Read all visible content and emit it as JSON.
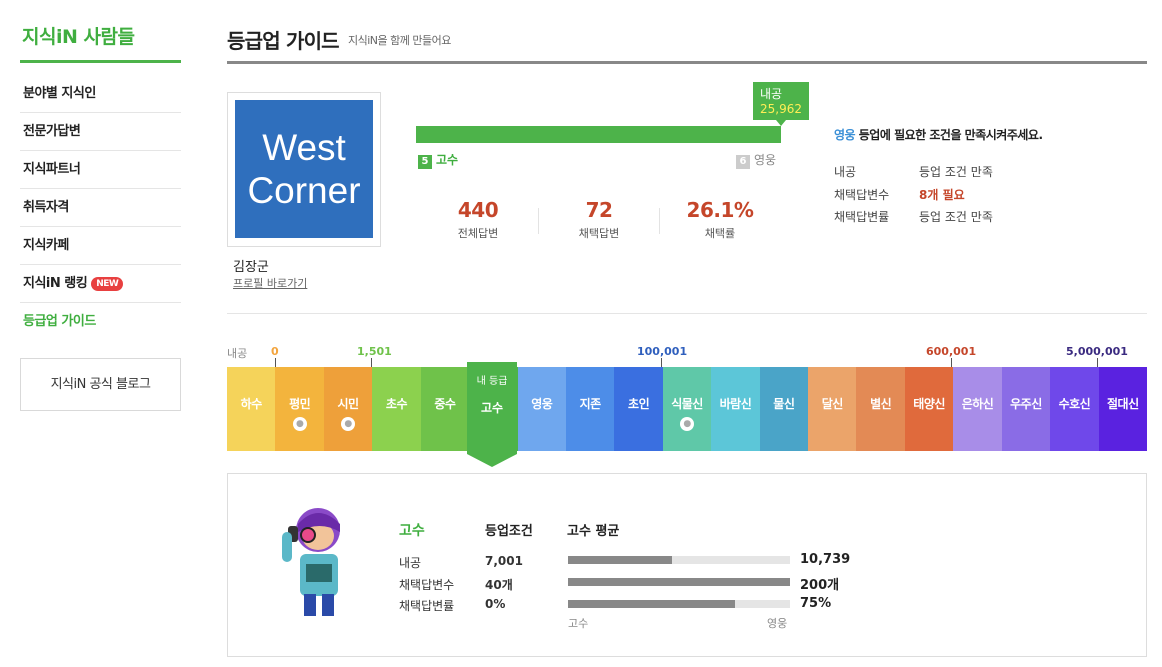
{
  "sidebar": {
    "title": "지식iN 사람들",
    "items": [
      {
        "label": "분야별 지식인"
      },
      {
        "label": "전문가답변"
      },
      {
        "label": "지식파트너"
      },
      {
        "label": "취득자격"
      },
      {
        "label": "지식카페"
      },
      {
        "label": "지식iN 랭킹",
        "badge": "NEW"
      },
      {
        "label": "등급업 가이드"
      }
    ],
    "blog_button": "지식iN 공식 블로그"
  },
  "header": {
    "title": "등급업 가이드",
    "subtitle": "지식iN을 함께 만들어요"
  },
  "profile": {
    "logo_line1": "West",
    "logo_line2": "Corner",
    "name": "김장군",
    "profile_link": "프로필 바로가기"
  },
  "progress": {
    "tip_label": "내공",
    "tip_value": "25,962",
    "fraction": 1.0,
    "current_num": "5",
    "current_name": "고수",
    "next_num": "6",
    "next_name": "영웅"
  },
  "stats": [
    {
      "value": "440",
      "label": "전체답변"
    },
    {
      "value": "72",
      "label": "채택답변"
    },
    {
      "value": "26.1%",
      "label": "채택률"
    }
  ],
  "conditions": {
    "level": "영웅",
    "title_rest": " 등업에 필요한 조건을 만족시켜주세요.",
    "rows": [
      {
        "key": "내공",
        "value": "등업 조건 만족",
        "needed": false
      },
      {
        "key": "채택답변수",
        "value": "8개 필요",
        "needed": true
      },
      {
        "key": "채택답변률",
        "value": "등업 조건 만족",
        "needed": false
      }
    ]
  },
  "scale": {
    "axis_label": "내공",
    "marks": [
      "0",
      "1,501",
      "100,001",
      "600,001",
      "5,000,001"
    ]
  },
  "levels": [
    {
      "name": "하수",
      "color": "#f5d35a",
      "coin": false
    },
    {
      "name": "평민",
      "color": "#f3b43d",
      "coin": true
    },
    {
      "name": "시민",
      "color": "#eea03a",
      "coin": true
    },
    {
      "name": "초수",
      "color": "#8cd14e",
      "coin": false
    },
    {
      "name": "중수",
      "color": "#6fc24a",
      "coin": false
    },
    {
      "name": "고수",
      "color": "#4db34a",
      "coin": false
    },
    {
      "name": "영웅",
      "color": "#6fa7ee",
      "coin": false
    },
    {
      "name": "지존",
      "color": "#4d8de8",
      "coin": false
    },
    {
      "name": "초인",
      "color": "#3a6fe0",
      "coin": false
    },
    {
      "name": "식물신",
      "color": "#5fc8a8",
      "coin": true
    },
    {
      "name": "바람신",
      "color": "#5cc6d8",
      "coin": false
    },
    {
      "name": "물신",
      "color": "#4aa4c8",
      "coin": false
    },
    {
      "name": "달신",
      "color": "#eba46a",
      "coin": false
    },
    {
      "name": "별신",
      "color": "#e38a55",
      "coin": false
    },
    {
      "name": "태양신",
      "color": "#e06a3c",
      "coin": false
    },
    {
      "name": "은하신",
      "color": "#a88de8",
      "coin": false
    },
    {
      "name": "우주신",
      "color": "#8a6ce6",
      "coin": false
    },
    {
      "name": "수호신",
      "color": "#6f48ea",
      "coin": false
    },
    {
      "name": "절대신",
      "color": "#5a22e0",
      "coin": false
    }
  ],
  "current_cell": {
    "tag": "내 등급",
    "name": "고수"
  },
  "detail": {
    "level": "고수",
    "cond_header": "등업조건",
    "avg_header": "고수 평균",
    "rows": [
      {
        "key": "내공",
        "cond": "7,001",
        "avg": "10,739",
        "fraction": 0.47
      },
      {
        "key": "채택답변수",
        "cond": "40개",
        "avg": "200개",
        "fraction": 1.0
      },
      {
        "key": "채택답변률",
        "cond": "0%",
        "avg": "75%",
        "fraction": 0.75
      }
    ],
    "scale_low": "고수",
    "scale_high": "영웅"
  },
  "colors": {
    "brand_green": "#4db34a",
    "accent_red": "#c5462a"
  }
}
